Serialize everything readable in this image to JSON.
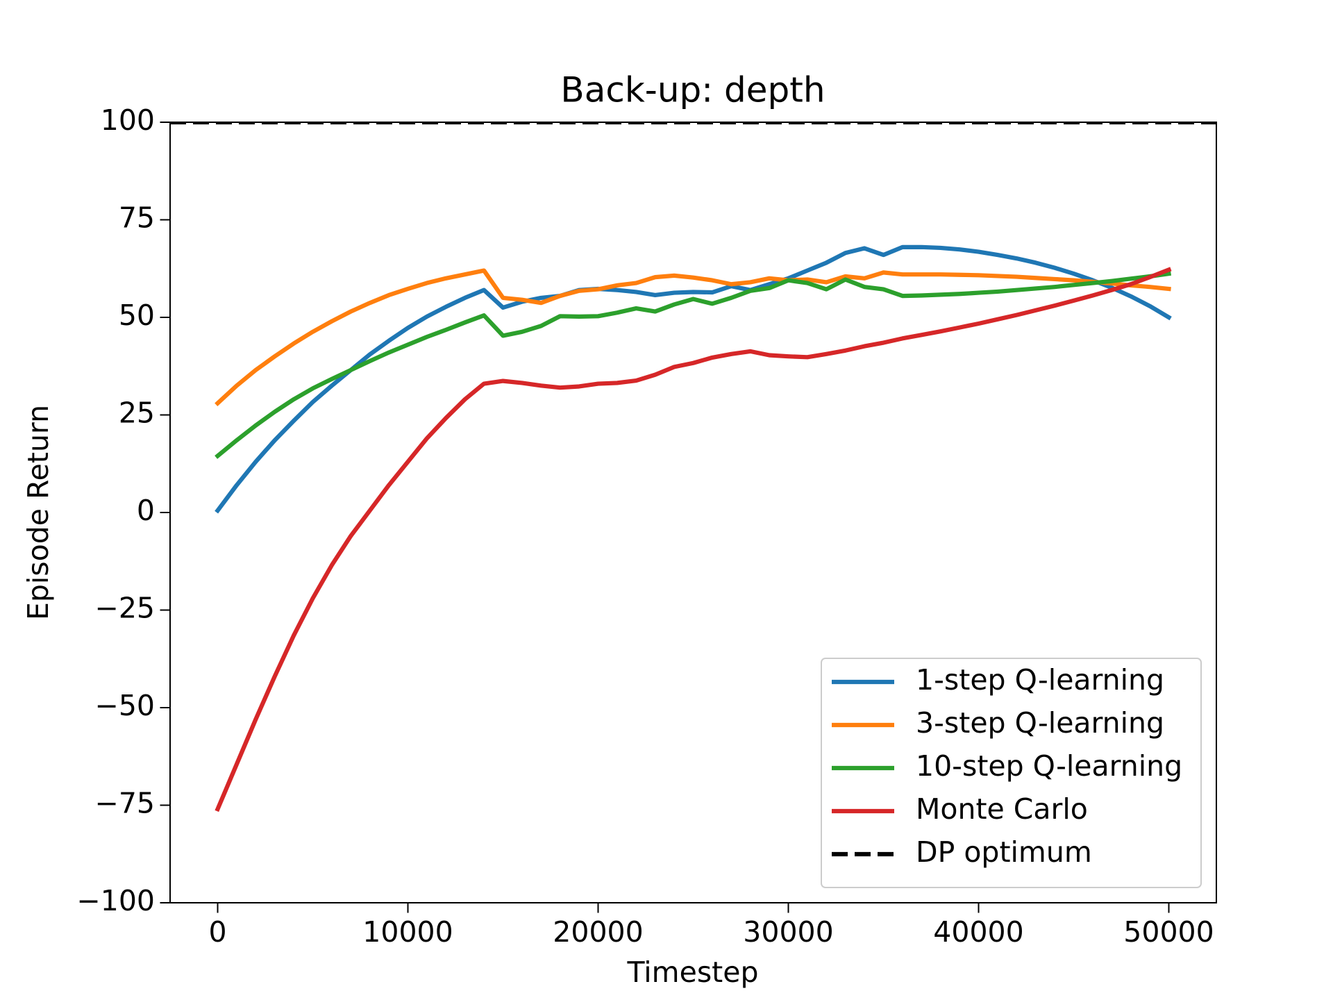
{
  "chart_data": {
    "type": "line",
    "title": "Back-up: depth",
    "xlabel": "Timestep",
    "ylabel": "Episode Return",
    "x": [
      0,
      1000,
      2000,
      3000,
      4000,
      5000,
      6000,
      7000,
      8000,
      9000,
      10000,
      11000,
      12000,
      13000,
      14000,
      15000,
      16000,
      17000,
      18000,
      19000,
      20000,
      21000,
      22000,
      23000,
      24000,
      25000,
      26000,
      27000,
      28000,
      29000,
      30000,
      31000,
      32000,
      33000,
      34000,
      35000,
      36000,
      37000,
      38000,
      39000,
      40000,
      41000,
      42000,
      43000,
      44000,
      45000,
      46000,
      47000,
      48000,
      49000,
      50000
    ],
    "series": [
      {
        "name": "1-step Q-learning",
        "color": "#1f77b4",
        "values": [
          0.5,
          7,
          13,
          18.5,
          23.5,
          28.3,
          32.5,
          36.5,
          40.5,
          44,
          47.3,
          50.2,
          52.7,
          55,
          57,
          52.5,
          54,
          55,
          55.5,
          57,
          57.3,
          57,
          56.5,
          55.7,
          56.3,
          56.5,
          56.4,
          58,
          57,
          58.5,
          60,
          62,
          64,
          66.5,
          67.7,
          66,
          68,
          68,
          67.8,
          67.4,
          66.8,
          66,
          65.1,
          64,
          62.7,
          61.2,
          59.5,
          57.6,
          55.4,
          52.9,
          50
        ]
      },
      {
        "name": "3-step Q-learning",
        "color": "#ff7f0e",
        "values": [
          28,
          32.5,
          36.5,
          40,
          43.3,
          46.3,
          49,
          51.5,
          53.7,
          55.7,
          57.3,
          58.8,
          60,
          61,
          62,
          55,
          54.5,
          53.7,
          55.5,
          56.8,
          57.2,
          58.2,
          58.8,
          60.3,
          60.7,
          60.2,
          59.5,
          58.5,
          59,
          60,
          59.5,
          59.7,
          59,
          60.5,
          60,
          61.5,
          61,
          61,
          61,
          60.9,
          60.8,
          60.6,
          60.4,
          60.1,
          59.8,
          59.5,
          59.1,
          58.7,
          58.2,
          57.8,
          57.3
        ]
      },
      {
        "name": "10-step Q-learning",
        "color": "#2ca02c",
        "values": [
          14.5,
          18.5,
          22.3,
          25.8,
          29,
          31.8,
          34.2,
          36.5,
          38.8,
          41,
          43,
          45,
          46.8,
          48.7,
          50.5,
          45.3,
          46.3,
          47.8,
          50.3,
          50.2,
          50.3,
          51.2,
          52.3,
          51.5,
          53.3,
          54.7,
          53.5,
          55,
          56.8,
          57.5,
          59.5,
          58.8,
          57.2,
          59.7,
          57.8,
          57.2,
          55.5,
          55.6,
          55.8,
          56,
          56.3,
          56.6,
          57,
          57.4,
          57.8,
          58.3,
          58.8,
          59.3,
          59.9,
          60.5,
          61.2
        ]
      },
      {
        "name": "Monte Carlo",
        "color": "#d62728",
        "values": [
          -76,
          -64.5,
          -53,
          -42,
          -31.5,
          -22,
          -13.5,
          -6,
          0.5,
          7,
          13,
          19,
          24.2,
          29,
          33,
          33.7,
          33.2,
          32.5,
          32,
          32.3,
          33,
          33.2,
          33.8,
          35.3,
          37.3,
          38.3,
          39.7,
          40.6,
          41.3,
          40.3,
          40,
          39.8,
          40.6,
          41.5,
          42.6,
          43.5,
          44.6,
          45.5,
          46.4,
          47.4,
          48.4,
          49.5,
          50.6,
          51.8,
          53,
          54.3,
          55.6,
          57,
          58.5,
          60.3,
          62.2
        ]
      }
    ],
    "hlines": [
      {
        "name": "DP optimum",
        "value": 100,
        "color": "#000000",
        "dashed": true
      }
    ],
    "xlim": [
      -2500,
      52500
    ],
    "xticks": [
      0,
      10000,
      20000,
      30000,
      40000,
      50000
    ],
    "ylim": [
      -100,
      100
    ],
    "yticks": [
      {
        "value": -100,
        "label": "−100"
      },
      {
        "value": -75,
        "label": "−75"
      },
      {
        "value": -50,
        "label": "−50"
      },
      {
        "value": -25,
        "label": "−25"
      },
      0,
      25,
      50,
      75,
      100
    ],
    "grid": false,
    "legend": "lower right"
  }
}
